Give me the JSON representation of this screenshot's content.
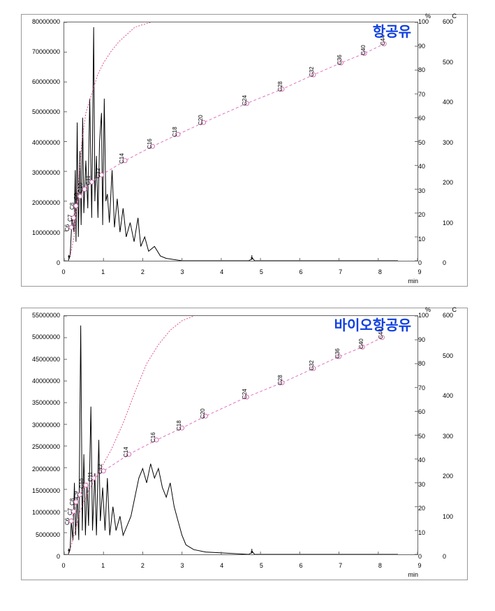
{
  "charts": [
    {
      "title": "항공유",
      "title_color": "#1040e0",
      "y1_max": 80000000,
      "y1_step": 10000000,
      "y1_ticks": [
        0,
        10000000,
        20000000,
        30000000,
        40000000,
        50000000,
        60000000,
        70000000,
        80000000
      ],
      "y2_max": 100,
      "y2_step": 10,
      "y2_unit": "%",
      "y3_max": 600,
      "y3_step": 100,
      "y3_unit": "C",
      "x_max": 9,
      "x_step": 1,
      "x_unit": "min",
      "carbon_points": [
        {
          "label": "C6",
          "x": 0.18,
          "y": 14
        },
        {
          "label": "C7",
          "x": 0.24,
          "y": 18
        },
        {
          "label": "C8",
          "x": 0.3,
          "y": 23
        },
        {
          "label": "C9",
          "x": 0.4,
          "y": 27
        },
        {
          "label": "C10",
          "x": 0.52,
          "y": 30
        },
        {
          "label": "C11",
          "x": 0.7,
          "y": 33
        },
        {
          "label": "C12",
          "x": 0.95,
          "y": 36
        },
        {
          "label": "C14",
          "x": 1.55,
          "y": 42
        },
        {
          "label": "C16",
          "x": 2.25,
          "y": 48
        },
        {
          "label": "C18",
          "x": 2.9,
          "y": 53
        },
        {
          "label": "C20",
          "x": 3.55,
          "y": 58
        },
        {
          "label": "C24",
          "x": 4.65,
          "y": 66
        },
        {
          "label": "C28",
          "x": 5.55,
          "y": 72
        },
        {
          "label": "C32",
          "x": 6.35,
          "y": 78
        },
        {
          "label": "C36",
          "x": 7.05,
          "y": 83
        },
        {
          "label": "C40",
          "x": 7.65,
          "y": 87
        },
        {
          "label": "C44",
          "x": 8.15,
          "y": 91
        }
      ],
      "dotted_curve_color": "#e05090",
      "dashed_line_color": "#e070c0",
      "chromatogram_color": "#000000",
      "dotted_curve": [
        [
          0.15,
          2
        ],
        [
          0.25,
          10
        ],
        [
          0.35,
          30
        ],
        [
          0.45,
          50
        ],
        [
          0.55,
          62
        ],
        [
          0.7,
          70
        ],
        [
          0.85,
          78
        ],
        [
          1.0,
          83
        ],
        [
          1.2,
          88
        ],
        [
          1.4,
          92
        ],
        [
          1.6,
          95
        ],
        [
          1.8,
          98
        ],
        [
          2.0,
          99
        ],
        [
          2.2,
          100
        ]
      ],
      "chromatogram": [
        [
          0.1,
          0
        ],
        [
          0.15,
          2
        ],
        [
          0.2,
          18
        ],
        [
          0.25,
          12
        ],
        [
          0.28,
          38
        ],
        [
          0.3,
          8
        ],
        [
          0.33,
          58
        ],
        [
          0.36,
          10
        ],
        [
          0.4,
          46
        ],
        [
          0.43,
          15
        ],
        [
          0.47,
          60
        ],
        [
          0.5,
          20
        ],
        [
          0.55,
          42
        ],
        [
          0.6,
          22
        ],
        [
          0.65,
          68
        ],
        [
          0.7,
          18
        ],
        [
          0.75,
          98
        ],
        [
          0.78,
          25
        ],
        [
          0.82,
          44
        ],
        [
          0.86,
          18
        ],
        [
          0.9,
          50
        ],
        [
          0.95,
          62
        ],
        [
          0.98,
          15
        ],
        [
          1.02,
          68
        ],
        [
          1.06,
          25
        ],
        [
          1.1,
          28
        ],
        [
          1.15,
          16
        ],
        [
          1.22,
          38
        ],
        [
          1.28,
          14
        ],
        [
          1.35,
          26
        ],
        [
          1.42,
          12
        ],
        [
          1.5,
          22
        ],
        [
          1.58,
          10
        ],
        [
          1.68,
          16
        ],
        [
          1.78,
          8
        ],
        [
          1.88,
          18
        ],
        [
          1.95,
          6
        ],
        [
          2.05,
          10
        ],
        [
          2.15,
          4
        ],
        [
          2.3,
          6
        ],
        [
          2.45,
          2
        ],
        [
          2.6,
          1
        ],
        [
          3.0,
          0
        ],
        [
          4.7,
          0
        ],
        [
          4.8,
          1
        ],
        [
          4.85,
          0
        ],
        [
          8.5,
          0
        ]
      ]
    },
    {
      "title": "바이오항공유",
      "title_color": "#1040e0",
      "y1_max": 55000000,
      "y1_step": 5000000,
      "y1_ticks": [
        0,
        5000000,
        10000000,
        15000000,
        20000000,
        25000000,
        30000000,
        35000000,
        40000000,
        45000000,
        50000000,
        55000000
      ],
      "y2_max": 100,
      "y2_step": 10,
      "y2_unit": "%",
      "y3_max": 600,
      "y3_step": 100,
      "y3_unit": "C",
      "x_max": 9,
      "x_step": 1,
      "x_unit": "min",
      "carbon_points": [
        {
          "label": "C6",
          "x": 0.18,
          "y": 14
        },
        {
          "label": "C7",
          "x": 0.24,
          "y": 18
        },
        {
          "label": "C8",
          "x": 0.3,
          "y": 22
        },
        {
          "label": "C9",
          "x": 0.4,
          "y": 25
        },
        {
          "label": "C10",
          "x": 0.55,
          "y": 29
        },
        {
          "label": "C11",
          "x": 0.75,
          "y": 32
        },
        {
          "label": "C12",
          "x": 1.0,
          "y": 35
        },
        {
          "label": "C14",
          "x": 1.65,
          "y": 42
        },
        {
          "label": "C16",
          "x": 2.35,
          "y": 48
        },
        {
          "label": "C18",
          "x": 3.0,
          "y": 53
        },
        {
          "label": "C20",
          "x": 3.6,
          "y": 58
        },
        {
          "label": "C24",
          "x": 4.65,
          "y": 66
        },
        {
          "label": "C28",
          "x": 5.55,
          "y": 72
        },
        {
          "label": "C32",
          "x": 6.35,
          "y": 78
        },
        {
          "label": "C36",
          "x": 7.0,
          "y": 83
        },
        {
          "label": "C40",
          "x": 7.6,
          "y": 87
        },
        {
          "label": "C44",
          "x": 8.1,
          "y": 91
        }
      ],
      "dotted_curve_color": "#e05090",
      "dashed_line_color": "#e070c0",
      "chromatogram_color": "#000000",
      "dotted_curve": [
        [
          0.15,
          2
        ],
        [
          0.25,
          8
        ],
        [
          0.4,
          18
        ],
        [
          0.6,
          26
        ],
        [
          0.8,
          32
        ],
        [
          1.0,
          38
        ],
        [
          1.2,
          44
        ],
        [
          1.5,
          55
        ],
        [
          1.8,
          68
        ],
        [
          2.1,
          80
        ],
        [
          2.4,
          88
        ],
        [
          2.7,
          94
        ],
        [
          3.0,
          98
        ],
        [
          3.3,
          100
        ]
      ],
      "chromatogram": [
        [
          0.1,
          0
        ],
        [
          0.15,
          2
        ],
        [
          0.18,
          14
        ],
        [
          0.22,
          6
        ],
        [
          0.26,
          30
        ],
        [
          0.29,
          8
        ],
        [
          0.33,
          24
        ],
        [
          0.37,
          6
        ],
        [
          0.42,
          96
        ],
        [
          0.46,
          10
        ],
        [
          0.5,
          42
        ],
        [
          0.54,
          8
        ],
        [
          0.58,
          30
        ],
        [
          0.62,
          12
        ],
        [
          0.68,
          62
        ],
        [
          0.72,
          10
        ],
        [
          0.78,
          34
        ],
        [
          0.82,
          8
        ],
        [
          0.88,
          48
        ],
        [
          0.92,
          14
        ],
        [
          0.98,
          28
        ],
        [
          1.04,
          10
        ],
        [
          1.1,
          32
        ],
        [
          1.16,
          8
        ],
        [
          1.24,
          20
        ],
        [
          1.32,
          10
        ],
        [
          1.42,
          16
        ],
        [
          1.5,
          8
        ],
        [
          1.6,
          12
        ],
        [
          1.7,
          16
        ],
        [
          1.8,
          24
        ],
        [
          1.9,
          32
        ],
        [
          2.0,
          36
        ],
        [
          2.1,
          30
        ],
        [
          2.2,
          38
        ],
        [
          2.3,
          32
        ],
        [
          2.4,
          36
        ],
        [
          2.5,
          28
        ],
        [
          2.6,
          24
        ],
        [
          2.7,
          30
        ],
        [
          2.8,
          20
        ],
        [
          2.9,
          14
        ],
        [
          3.0,
          8
        ],
        [
          3.1,
          4
        ],
        [
          3.3,
          2
        ],
        [
          3.6,
          1
        ],
        [
          4.7,
          0
        ],
        [
          4.8,
          1
        ],
        [
          4.85,
          0
        ],
        [
          8.5,
          0
        ]
      ]
    }
  ]
}
